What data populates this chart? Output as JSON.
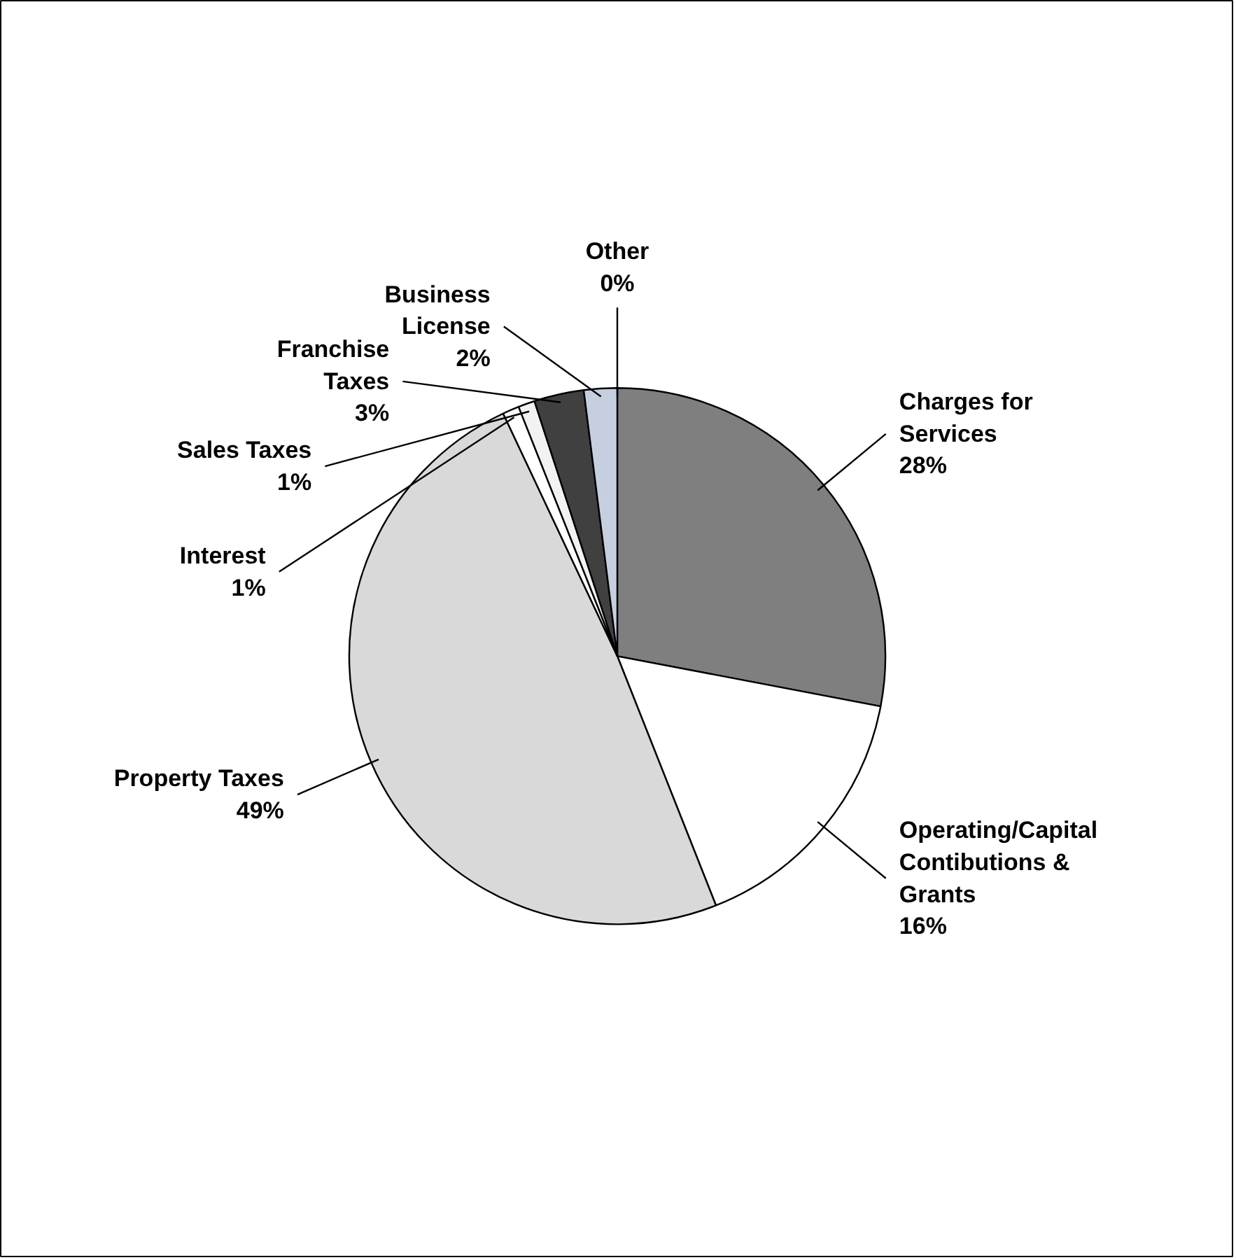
{
  "chart_data": {
    "type": "pie",
    "categories": [
      "Charges for Services",
      "Operating/Capital Contibutions & Grants",
      "Property Taxes",
      "Interest",
      "Sales Taxes",
      "Franchise Taxes",
      "Business License",
      "Other"
    ],
    "values": [
      28,
      16,
      49,
      1,
      1,
      3,
      2,
      0
    ],
    "colors": [
      "#7f7f7f",
      "#ffffff",
      "#d9d9d9",
      "#ffffff",
      "#f2f2f2",
      "#404040",
      "#c6cfe0",
      "#ffffff"
    ],
    "value_labels": [
      "28%",
      "16%",
      "49%",
      "1%",
      "1%",
      "3%",
      "2%",
      "0%"
    ]
  }
}
